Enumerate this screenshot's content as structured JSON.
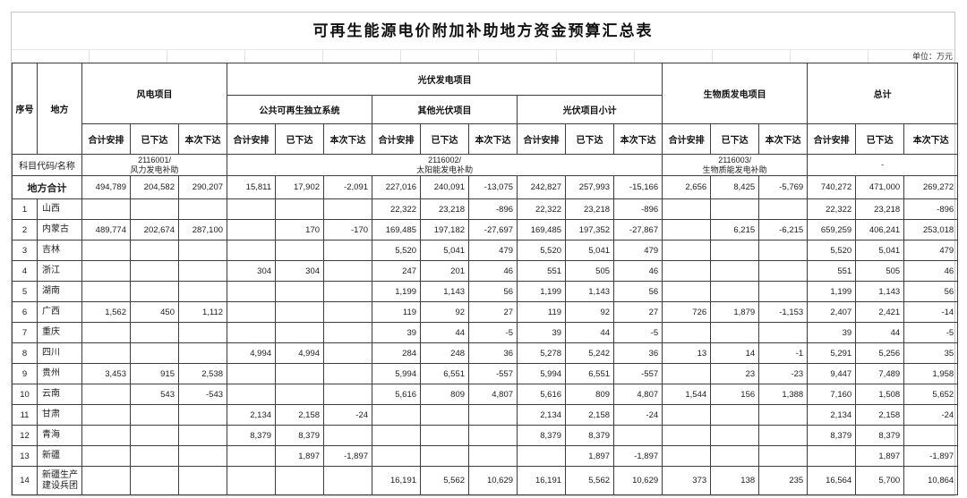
{
  "title": "可再生能源电价附加补助地方资金预算汇总表",
  "unit_note": "单位：万元",
  "header": {
    "seq": "序号",
    "region": "地方",
    "wind_group": "风电项目",
    "solar_group": "光伏发电项目",
    "biomass_group": "生物质发电项目",
    "total_group": "总计",
    "solar_subs": [
      "公共可再生独立系统",
      "其他光伏项目",
      "光伏项目小计"
    ],
    "measures": [
      "合计安排",
      "已下达",
      "本次下达"
    ]
  },
  "subject": {
    "label": "科目代码/名称",
    "wind_code": "2116001/\n风力发电补助",
    "solar_code": "2116002/\n太阳能发电补助",
    "biomass_code": "2116003/\n生物质能发电补助",
    "total_code": "-"
  },
  "colors": {
    "table_border": "#3d3d3d",
    "sheet_border": "#c6c6c6",
    "text": "#1c1c1c"
  },
  "total_row": {
    "label": "地方合计",
    "values": [
      "494,789",
      "204,582",
      "290,207",
      "15,811",
      "17,902",
      "-2,091",
      "227,016",
      "240,091",
      "-13,075",
      "242,827",
      "257,993",
      "-15,166",
      "2,656",
      "8,425",
      "-5,769",
      "740,272",
      "471,000",
      "269,272"
    ]
  },
  "rows": [
    {
      "seq": "1",
      "region": "山西",
      "values": [
        "",
        "",
        "",
        "",
        "",
        "",
        "22,322",
        "23,218",
        "-896",
        "22,322",
        "23,218",
        "-896",
        "",
        "",
        "",
        "22,322",
        "23,218",
        "-896"
      ]
    },
    {
      "seq": "2",
      "region": "内蒙古",
      "values": [
        "489,774",
        "202,674",
        "287,100",
        "",
        "170",
        "-170",
        "169,485",
        "197,182",
        "-27,697",
        "169,485",
        "197,352",
        "-27,867",
        "",
        "6,215",
        "-6,215",
        "659,259",
        "406,241",
        "253,018"
      ]
    },
    {
      "seq": "3",
      "region": "吉林",
      "values": [
        "",
        "",
        "",
        "",
        "",
        "",
        "5,520",
        "5,041",
        "479",
        "5,520",
        "5,041",
        "479",
        "",
        "",
        "",
        "5,520",
        "5,041",
        "479"
      ]
    },
    {
      "seq": "4",
      "region": "浙江",
      "values": [
        "",
        "",
        "",
        "304",
        "304",
        "",
        "247",
        "201",
        "46",
        "551",
        "505",
        "46",
        "",
        "",
        "",
        "551",
        "505",
        "46"
      ]
    },
    {
      "seq": "5",
      "region": "湖南",
      "values": [
        "",
        "",
        "",
        "",
        "",
        "",
        "1,199",
        "1,143",
        "56",
        "1,199",
        "1,143",
        "56",
        "",
        "",
        "",
        "1,199",
        "1,143",
        "56"
      ]
    },
    {
      "seq": "6",
      "region": "广西",
      "values": [
        "1,562",
        "450",
        "1,112",
        "",
        "",
        "",
        "119",
        "92",
        "27",
        "119",
        "92",
        "27",
        "726",
        "1,879",
        "-1,153",
        "2,407",
        "2,421",
        "-14"
      ]
    },
    {
      "seq": "7",
      "region": "重庆",
      "values": [
        "",
        "",
        "",
        "",
        "",
        "",
        "39",
        "44",
        "-5",
        "39",
        "44",
        "-5",
        "",
        "",
        "",
        "39",
        "44",
        "-5"
      ]
    },
    {
      "seq": "8",
      "region": "四川",
      "values": [
        "",
        "",
        "",
        "4,994",
        "4,994",
        "",
        "284",
        "248",
        "36",
        "5,278",
        "5,242",
        "36",
        "13",
        "14",
        "-1",
        "5,291",
        "5,256",
        "35"
      ]
    },
    {
      "seq": "9",
      "region": "贵州",
      "values": [
        "3,453",
        "915",
        "2,538",
        "",
        "",
        "",
        "5,994",
        "6,551",
        "-557",
        "5,994",
        "6,551",
        "-557",
        "",
        "23",
        "-23",
        "9,447",
        "7,489",
        "1,958"
      ]
    },
    {
      "seq": "10",
      "region": "云南",
      "values": [
        "",
        "543",
        "-543",
        "",
        "",
        "",
        "5,616",
        "809",
        "4,807",
        "5,616",
        "809",
        "4,807",
        "1,544",
        "156",
        "1,388",
        "7,160",
        "1,508",
        "5,652"
      ]
    },
    {
      "seq": "11",
      "region": "甘肃",
      "values": [
        "",
        "",
        "",
        "2,134",
        "2,158",
        "-24",
        "",
        "",
        "",
        "2,134",
        "2,158",
        "-24",
        "",
        "",
        "",
        "2,134",
        "2,158",
        "-24"
      ]
    },
    {
      "seq": "12",
      "region": "青海",
      "values": [
        "",
        "",
        "",
        "8,379",
        "8,379",
        "",
        "",
        "",
        "",
        "8,379",
        "8,379",
        "",
        "",
        "",
        "",
        "8,379",
        "8,379",
        ""
      ]
    },
    {
      "seq": "13",
      "region": "新疆",
      "values": [
        "",
        "",
        "",
        "",
        "1,897",
        "-1,897",
        "",
        "",
        "",
        "",
        "1,897",
        "-1,897",
        "",
        "",
        "",
        "",
        "1,897",
        "-1,897"
      ]
    },
    {
      "seq": "14",
      "region": "新疆生产建设兵团",
      "values": [
        "",
        "",
        "",
        "",
        "",
        "",
        "16,191",
        "5,562",
        "10,629",
        "16,191",
        "5,562",
        "10,629",
        "373",
        "138",
        "235",
        "16,564",
        "5,700",
        "10,864"
      ]
    }
  ]
}
